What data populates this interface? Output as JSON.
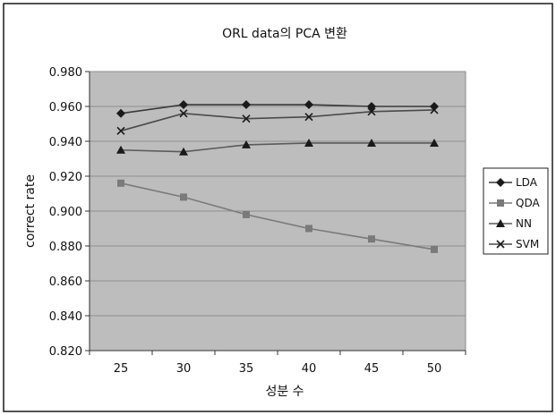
{
  "chart_data": {
    "type": "line",
    "title": "ORL data의 PCA 변환",
    "xlabel": "성분 수",
    "ylabel": "correct rate",
    "x": [
      25,
      30,
      35,
      40,
      45,
      50
    ],
    "x_tick_labels": [
      "25",
      "30",
      "35",
      "40",
      "45",
      "50"
    ],
    "ylim": [
      0.82,
      0.98
    ],
    "y_tick_labels": [
      "0.820",
      "0.840",
      "0.860",
      "0.880",
      "0.900",
      "0.920",
      "0.940",
      "0.960",
      "0.980"
    ],
    "grid": true,
    "legend_position": "right",
    "series": [
      {
        "name": "LDA",
        "marker": "diamond",
        "color": "#3a3a3a",
        "values": [
          0.956,
          0.961,
          0.961,
          0.961,
          0.96,
          0.96
        ]
      },
      {
        "name": "QDA",
        "marker": "square",
        "color": "#7a7a7a",
        "values": [
          0.916,
          0.908,
          0.898,
          0.89,
          0.884,
          0.878
        ]
      },
      {
        "name": "NN",
        "marker": "triangle",
        "color": "#5a5a5a",
        "values": [
          0.935,
          0.934,
          0.938,
          0.939,
          0.939,
          0.939
        ]
      },
      {
        "name": "SVM",
        "marker": "x",
        "color": "#4a4a4a",
        "values": [
          0.946,
          0.956,
          0.953,
          0.954,
          0.957,
          0.958
        ]
      }
    ]
  }
}
